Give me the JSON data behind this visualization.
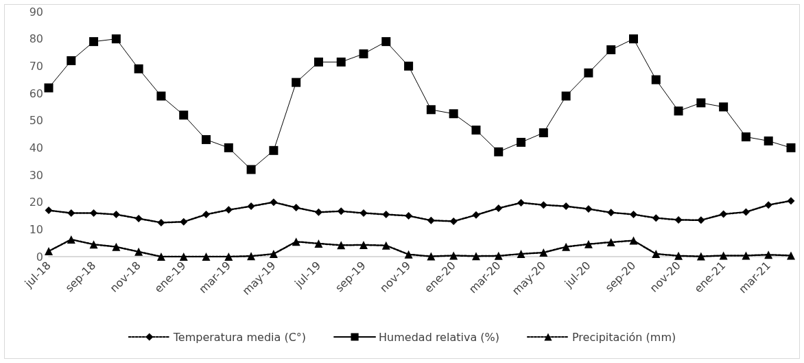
{
  "chart_data": {
    "type": "line",
    "categories": [
      "jul-18",
      null,
      "sep-18",
      null,
      "nov-18",
      null,
      "ene-19",
      null,
      "mar-19",
      null,
      "may-19",
      null,
      "jul-19",
      null,
      "sep-19",
      null,
      "nov-19",
      null,
      "ene-20",
      null,
      "mar-20",
      null,
      "may-20",
      null,
      "jul-20",
      null,
      "sep-20",
      null,
      "nov-20",
      null,
      "ene-21",
      null,
      "mar-21",
      null
    ],
    "ylim": [
      0,
      90
    ],
    "yticks": [
      0,
      10,
      20,
      30,
      40,
      50,
      60,
      70,
      80,
      90
    ],
    "grid": false,
    "legend": "bottom",
    "series": [
      {
        "name": "Temperatura media (C°)",
        "color": "#000000",
        "marker": "diamond",
        "line_style": "dotted",
        "values": [
          17,
          16,
          16,
          15.5,
          14,
          12.5,
          12.8,
          15.5,
          17.2,
          18.5,
          20,
          18,
          16.3,
          16.7,
          16,
          15.5,
          15,
          13.3,
          13,
          15.3,
          17.8,
          19.8,
          19,
          18.5,
          17.5,
          16.2,
          15.5,
          14.2,
          13.5,
          13.4,
          15.6,
          16.4,
          19,
          20.5
        ]
      },
      {
        "name": "Humedad relativa (%)",
        "color": "#000000",
        "marker": "square",
        "line_style": "solid",
        "values": [
          62,
          72,
          79,
          80,
          69,
          59,
          52,
          43,
          40,
          32,
          39,
          64,
          71.5,
          71.5,
          74.5,
          79,
          70,
          54,
          52.5,
          46.5,
          38.5,
          42,
          45.5,
          59,
          67.5,
          76,
          80,
          65,
          53.5,
          56.5,
          55,
          44,
          42.5,
          40
        ]
      },
      {
        "name": "Precipitación (mm)",
        "color": "#000000",
        "marker": "triangle",
        "line_style": "dotted",
        "values": [
          2,
          6.3,
          4.5,
          3.6,
          1.8,
          0,
          0,
          0,
          0,
          0.2,
          1,
          5.5,
          4.8,
          4.2,
          4.3,
          4.1,
          0.8,
          0.1,
          0.4,
          0.2,
          0.3,
          1,
          1.5,
          3.6,
          4.6,
          5.3,
          5.9,
          1,
          0.3,
          0.1,
          0.4,
          0.4,
          0.7,
          0.4
        ]
      }
    ]
  }
}
